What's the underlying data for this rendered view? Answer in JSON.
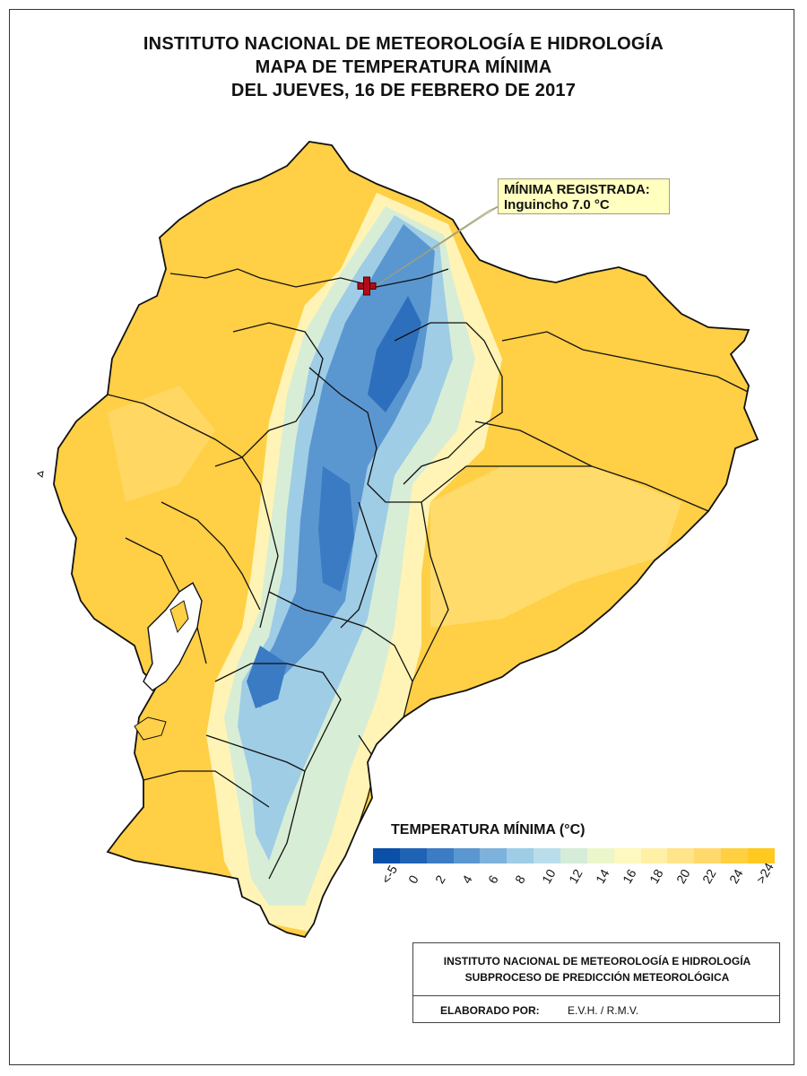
{
  "title": {
    "line1": "INSTITUTO NACIONAL DE METEOROLOGÍA E HIDROLOGÍA",
    "line2": "MAPA DE TEMPERATURA MÍNIMA",
    "line3": "DEL JUEVES, 16 DE FEBRERO DE 2017"
  },
  "annotation": {
    "line1": "MÍNIMA REGISTRADA:",
    "line2": "Inguincho 7.0 °C",
    "marker_icon": "red-cross-icon"
  },
  "legend": {
    "title": "TEMPERATURA MÍNIMA (°C)",
    "colors": [
      "#0a4fa8",
      "#1f63b5",
      "#3b7cc4",
      "#5a97d1",
      "#7db2dc",
      "#9fcde6",
      "#b9ddea",
      "#d4ecd8",
      "#ecf6cb",
      "#fdf8c0",
      "#fff0a6",
      "#ffe48a",
      "#ffd96b",
      "#ffd03f",
      "#ffc920"
    ],
    "ticks": [
      "<-5",
      "0",
      "2",
      "4",
      "6",
      "8",
      "10",
      "12",
      "14",
      "16",
      "18",
      "20",
      "22",
      "24",
      ">24"
    ]
  },
  "credits": {
    "line1": "INSTITUTO NACIONAL DE METEOROLOGÍA E HIDROLOGÍA",
    "line2": "SUBPROCESO DE PREDICCIÓN METEOROLÓGICA",
    "elaborated_label": "ELABORADO POR:",
    "elaborated_value": "E.V.H. / R.M.V."
  }
}
